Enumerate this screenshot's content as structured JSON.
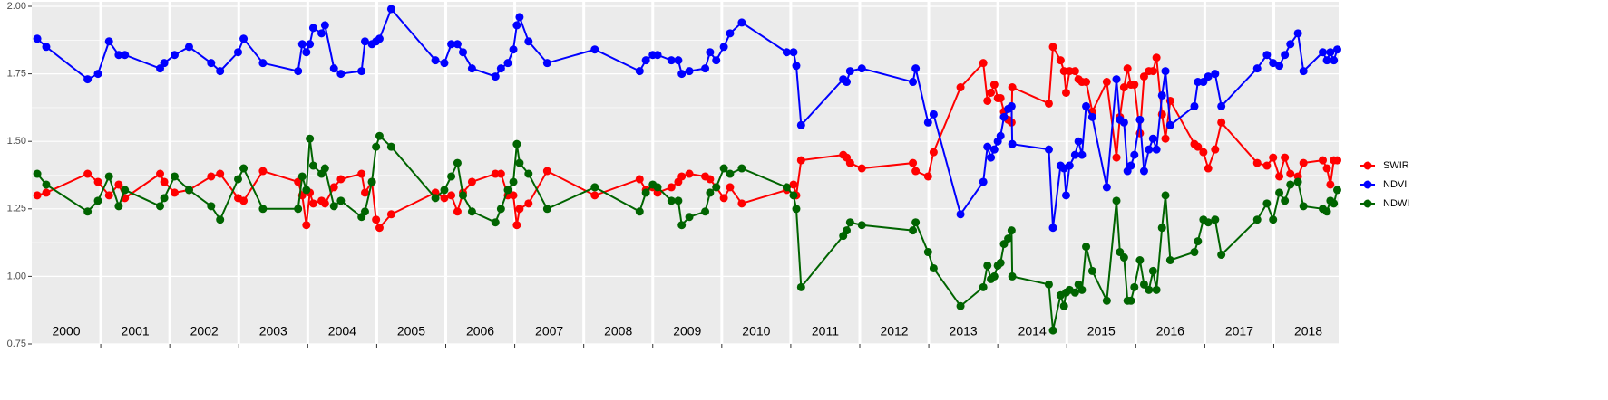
{
  "chart_data": {
    "type": "line",
    "x": [
      2000.08,
      2000.21,
      2000.81,
      2000.96,
      2001.12,
      2001.26,
      2001.35,
      2001.86,
      2001.92,
      2002.07,
      2002.28,
      2002.6,
      2002.73,
      2002.99,
      2003.07,
      2003.35,
      2003.86,
      2003.92,
      2003.98,
      2004.03,
      2004.08,
      2004.2,
      2004.25,
      2004.38,
      2004.48,
      2004.78,
      2004.83,
      2004.93,
      2004.99,
      2005.04,
      2005.21,
      2005.85,
      2005.98,
      2006.08,
      2006.17,
      2006.25,
      2006.38,
      2006.72,
      2006.8,
      2006.9,
      2006.98,
      2007.03,
      2007.07,
      2007.2,
      2007.47,
      2008.16,
      2008.81,
      2008.9,
      2009.0,
      2009.07,
      2009.27,
      2009.37,
      2009.42,
      2009.53,
      2009.76,
      2009.83,
      2009.92,
      2010.03,
      2010.12,
      2010.29,
      2010.94,
      2011.04,
      2011.08,
      2011.15,
      2011.76,
      2011.81,
      2011.86,
      2012.03,
      2012.77,
      2012.81,
      2012.99,
      2013.07,
      2013.46,
      2013.79,
      2013.85,
      2013.9,
      2013.95,
      2014.0,
      2014.04,
      2014.09,
      2014.15,
      2014.2,
      2014.21,
      2014.74,
      2014.8,
      2014.91,
      2014.96,
      2014.99,
      2015.04,
      2015.12,
      2015.17,
      2015.22,
      2015.28,
      2015.37,
      2015.58,
      2015.72,
      2015.77,
      2015.83,
      2015.88,
      2015.93,
      2015.98,
      2016.06,
      2016.12,
      2016.19,
      2016.25,
      2016.3,
      2016.38,
      2016.43,
      2016.5,
      2016.85,
      2016.9,
      2016.98,
      2017.05,
      2017.15,
      2017.24,
      2017.76,
      2017.9,
      2017.99,
      2018.08,
      2018.16,
      2018.24,
      2018.35,
      2018.43,
      2018.71,
      2018.77,
      2018.82,
      2018.87,
      2018.92
    ],
    "series": [
      {
        "name": "SWIR",
        "color": "#ff0000",
        "values": [
          1.3,
          1.31,
          1.38,
          1.35,
          1.3,
          1.34,
          1.29,
          1.38,
          1.35,
          1.31,
          1.32,
          1.37,
          1.38,
          1.29,
          1.28,
          1.39,
          1.35,
          1.3,
          1.19,
          1.31,
          1.27,
          1.28,
          1.27,
          1.33,
          1.36,
          1.38,
          1.31,
          1.35,
          1.21,
          1.18,
          1.23,
          1.31,
          1.29,
          1.3,
          1.24,
          1.31,
          1.35,
          1.38,
          1.38,
          1.3,
          1.3,
          1.19,
          1.25,
          1.27,
          1.39,
          1.3,
          1.36,
          1.32,
          1.33,
          1.31,
          1.33,
          1.35,
          1.37,
          1.38,
          1.37,
          1.36,
          1.33,
          1.29,
          1.33,
          1.27,
          1.32,
          1.34,
          1.3,
          1.43,
          1.45,
          1.44,
          1.42,
          1.4,
          1.42,
          1.39,
          1.37,
          1.46,
          1.7,
          1.79,
          1.65,
          1.68,
          1.71,
          1.66,
          1.66,
          1.61,
          1.58,
          1.57,
          1.7,
          1.64,
          1.85,
          1.8,
          1.76,
          1.68,
          1.76,
          1.76,
          1.73,
          1.72,
          1.72,
          1.61,
          1.72,
          1.44,
          1.59,
          1.7,
          1.77,
          1.71,
          1.71,
          1.53,
          1.74,
          1.76,
          1.76,
          1.81,
          1.6,
          1.51,
          1.65,
          1.49,
          1.48,
          1.46,
          1.4,
          1.47,
          1.57,
          1.42,
          1.41,
          1.44,
          1.37,
          1.44,
          1.38,
          1.37,
          1.42,
          1.43,
          1.4,
          1.34,
          1.43,
          1.43
        ]
      },
      {
        "name": "NDVI",
        "color": "#0000ff",
        "values": [
          1.88,
          1.85,
          1.73,
          1.75,
          1.87,
          1.82,
          1.82,
          1.77,
          1.79,
          1.82,
          1.85,
          1.79,
          1.76,
          1.83,
          1.88,
          1.79,
          1.76,
          1.86,
          1.83,
          1.86,
          1.92,
          1.9,
          1.93,
          1.77,
          1.75,
          1.76,
          1.87,
          1.86,
          1.87,
          1.88,
          1.99,
          1.8,
          1.79,
          1.86,
          1.86,
          1.83,
          1.77,
          1.74,
          1.77,
          1.79,
          1.84,
          1.93,
          1.96,
          1.87,
          1.79,
          1.84,
          1.76,
          1.8,
          1.82,
          1.82,
          1.8,
          1.8,
          1.75,
          1.76,
          1.77,
          1.83,
          1.8,
          1.85,
          1.9,
          1.94,
          1.83,
          1.83,
          1.78,
          1.56,
          1.73,
          1.72,
          1.76,
          1.77,
          1.72,
          1.77,
          1.57,
          1.6,
          1.23,
          1.35,
          1.48,
          1.44,
          1.47,
          1.5,
          1.52,
          1.59,
          1.62,
          1.63,
          1.49,
          1.47,
          1.18,
          1.41,
          1.4,
          1.3,
          1.41,
          1.45,
          1.5,
          1.45,
          1.63,
          1.59,
          1.33,
          1.73,
          1.58,
          1.57,
          1.39,
          1.41,
          1.45,
          1.58,
          1.39,
          1.47,
          1.51,
          1.47,
          1.67,
          1.76,
          1.56,
          1.63,
          1.72,
          1.72,
          1.74,
          1.75,
          1.63,
          1.77,
          1.82,
          1.79,
          1.78,
          1.82,
          1.86,
          1.9,
          1.76,
          1.83,
          1.8,
          1.83,
          1.8,
          1.84
        ]
      },
      {
        "name": "NDWI",
        "color": "#006400",
        "values": [
          1.38,
          1.34,
          1.24,
          1.28,
          1.37,
          1.26,
          1.32,
          1.26,
          1.29,
          1.37,
          1.32,
          1.26,
          1.21,
          1.36,
          1.4,
          1.25,
          1.25,
          1.37,
          1.32,
          1.51,
          1.41,
          1.38,
          1.4,
          1.26,
          1.28,
          1.22,
          1.24,
          1.35,
          1.48,
          1.52,
          1.48,
          1.29,
          1.32,
          1.37,
          1.42,
          1.3,
          1.24,
          1.2,
          1.25,
          1.32,
          1.35,
          1.49,
          1.42,
          1.38,
          1.25,
          1.33,
          1.24,
          1.31,
          1.34,
          1.33,
          1.28,
          1.28,
          1.19,
          1.22,
          1.24,
          1.31,
          1.33,
          1.4,
          1.38,
          1.4,
          1.33,
          1.3,
          1.25,
          0.96,
          1.15,
          1.17,
          1.2,
          1.19,
          1.17,
          1.2,
          1.09,
          1.03,
          0.89,
          0.96,
          1.04,
          0.99,
          1.0,
          1.04,
          1.05,
          1.12,
          1.14,
          1.17,
          1.0,
          0.97,
          0.8,
          0.93,
          0.89,
          0.94,
          0.95,
          0.94,
          0.97,
          0.95,
          1.11,
          1.02,
          0.91,
          1.28,
          1.09,
          1.07,
          0.91,
          0.91,
          0.96,
          1.06,
          0.97,
          0.95,
          1.02,
          0.95,
          1.18,
          1.3,
          1.06,
          1.09,
          1.13,
          1.21,
          1.2,
          1.21,
          1.08,
          1.21,
          1.27,
          1.21,
          1.31,
          1.28,
          1.34,
          1.35,
          1.26,
          1.25,
          1.24,
          1.28,
          1.27,
          1.32
        ]
      }
    ],
    "xlim": [
      2000,
      2018.94
    ],
    "year_boundaries": [
      2001,
      2002,
      2003,
      2004,
      2005,
      2006,
      2007,
      2008,
      2009,
      2010,
      2011,
      2012,
      2013,
      2014,
      2015,
      2016,
      2017,
      2018
    ],
    "xticks": [
      {
        "value": 2000.5,
        "label": "2000"
      },
      {
        "value": 2001.5,
        "label": "2001"
      },
      {
        "value": 2002.5,
        "label": "2002"
      },
      {
        "value": 2003.5,
        "label": "2003"
      },
      {
        "value": 2004.5,
        "label": "2004"
      },
      {
        "value": 2005.5,
        "label": "2005"
      },
      {
        "value": 2006.5,
        "label": "2006"
      },
      {
        "value": 2007.5,
        "label": "2007"
      },
      {
        "value": 2008.5,
        "label": "2008"
      },
      {
        "value": 2009.5,
        "label": "2009"
      },
      {
        "value": 2010.5,
        "label": "2010"
      },
      {
        "value": 2011.5,
        "label": "2011"
      },
      {
        "value": 2012.5,
        "label": "2012"
      },
      {
        "value": 2013.5,
        "label": "2013"
      },
      {
        "value": 2014.5,
        "label": "2014"
      },
      {
        "value": 2015.5,
        "label": "2015"
      },
      {
        "value": 2016.5,
        "label": "2016"
      },
      {
        "value": 2017.5,
        "label": "2017"
      },
      {
        "value": 2018.5,
        "label": "2018"
      }
    ],
    "ylim": [
      0.75,
      2.0
    ],
    "yticks": [
      {
        "value": 0.75,
        "label": "0.75"
      },
      {
        "value": 1.0,
        "label": "1.00"
      },
      {
        "value": 1.25,
        "label": "1.25"
      },
      {
        "value": 1.5,
        "label": "1.50"
      },
      {
        "value": 1.75,
        "label": "1.75"
      },
      {
        "value": 2.0,
        "label": "2.00"
      }
    ],
    "grid": true,
    "legend": "right"
  }
}
